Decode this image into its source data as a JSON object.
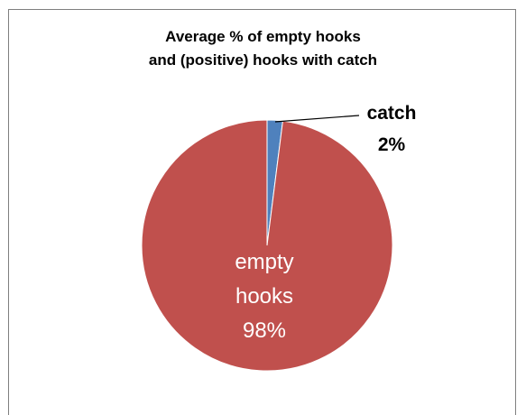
{
  "chart_data": {
    "type": "pie",
    "title_lines": [
      "Average % of empty hooks",
      "and (positive) hooks with catch"
    ],
    "slices": [
      {
        "category": "catch",
        "percent_label": "2%",
        "value": 2,
        "color": "#4f81bd"
      },
      {
        "category_lines": [
          "empty",
          "hooks"
        ],
        "percent_label": "98%",
        "value": 98,
        "color": "#c0504d"
      }
    ]
  }
}
